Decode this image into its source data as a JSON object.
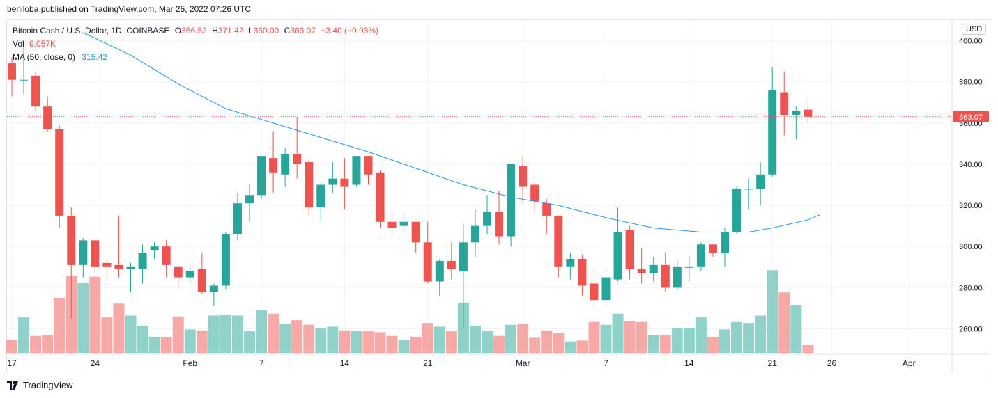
{
  "header": {
    "published_text": "beniloba published on TradingView.com, Mar 25, 2022 07:26 UTC"
  },
  "legend": {
    "symbol": "Bitcoin Cash / U.S. Dollar, 1D, COINBASE",
    "o_label": "O",
    "o_value": "366.52",
    "h_label": "H",
    "h_value": "371.42",
    "l_label": "L",
    "l_value": "360.00",
    "c_label": "C",
    "c_value": "363.07",
    "change": "−3.40 (−0.93%)",
    "vol_label": "Vol",
    "vol_value": "9.057K",
    "ma_label": "MA (50, close, 0)",
    "ma_value": "315.42"
  },
  "currency_button": "USD",
  "footer": {
    "brand": "TradingView"
  },
  "colors": {
    "up": "#26a69a",
    "down": "#ef5350",
    "up_vol": "#90d1ca",
    "down_vol": "#f7a9a7",
    "ma": "#2196f3"
  },
  "chart_data": {
    "type": "candlestick",
    "last_price_label": "363.07",
    "y_ticks": [
      "260.00",
      "280.00",
      "300.00",
      "320.00",
      "340.00",
      "360.00",
      "380.00",
      "400.00"
    ],
    "x_ticks": [
      "17",
      "24",
      "Feb",
      "7",
      "14",
      "21",
      "Mar",
      "7",
      "14",
      "21",
      "26",
      "Apr"
    ],
    "ylim": [
      248,
      410
    ],
    "candles": [
      {
        "date": "Jan 17",
        "o": 389,
        "h": 392,
        "l": 373,
        "c": 381,
        "v": 15
      },
      {
        "date": "Jan 18",
        "o": 381,
        "h": 400,
        "l": 374,
        "c": 381,
        "v": 39
      },
      {
        "date": "Jan 19",
        "o": 383,
        "h": 385,
        "l": 366,
        "c": 368,
        "v": 19
      },
      {
        "date": "Jan 20",
        "o": 368,
        "h": 373,
        "l": 356,
        "c": 357,
        "v": 20
      },
      {
        "date": "Jan 21",
        "o": 357,
        "h": 359,
        "l": 309,
        "c": 315,
        "v": 60
      },
      {
        "date": "Jan 22",
        "o": 315,
        "h": 319,
        "l": 265,
        "c": 291,
        "v": 84
      },
      {
        "date": "Jan 23",
        "o": 291,
        "h": 304,
        "l": 285,
        "c": 303,
        "v": 76
      },
      {
        "date": "Jan 24",
        "o": 303,
        "h": 303,
        "l": 287,
        "c": 290,
        "v": 83
      },
      {
        "date": "Jan 25",
        "o": 292,
        "h": 293,
        "l": 283,
        "c": 290,
        "v": 39
      },
      {
        "date": "Jan 26",
        "o": 291,
        "h": 315,
        "l": 285,
        "c": 289,
        "v": 54
      },
      {
        "date": "Jan 27",
        "o": 289,
        "h": 292,
        "l": 278,
        "c": 290,
        "v": 41
      },
      {
        "date": "Jan 28",
        "o": 289,
        "h": 301,
        "l": 282,
        "c": 297,
        "v": 30
      },
      {
        "date": "Jan 29",
        "o": 298,
        "h": 302,
        "l": 294,
        "c": 300,
        "v": 18
      },
      {
        "date": "Jan 30",
        "o": 300,
        "h": 303,
        "l": 285,
        "c": 291,
        "v": 18
      },
      {
        "date": "Jan 31",
        "o": 290,
        "h": 291,
        "l": 279,
        "c": 285,
        "v": 40
      },
      {
        "date": "Feb 1",
        "o": 285,
        "h": 291,
        "l": 282,
        "c": 288,
        "v": 26
      },
      {
        "date": "Feb 2",
        "o": 289,
        "h": 297,
        "l": 277,
        "c": 278,
        "v": 25
      },
      {
        "date": "Feb 3",
        "o": 278,
        "h": 282,
        "l": 271,
        "c": 281,
        "v": 41
      },
      {
        "date": "Feb 4",
        "o": 281,
        "h": 307,
        "l": 279,
        "c": 306,
        "v": 42
      },
      {
        "date": "Feb 5",
        "o": 306,
        "h": 326,
        "l": 303,
        "c": 321,
        "v": 41
      },
      {
        "date": "Feb 6",
        "o": 321,
        "h": 330,
        "l": 312,
        "c": 325,
        "v": 24
      },
      {
        "date": "Feb 7",
        "o": 325,
        "h": 344,
        "l": 323,
        "c": 344,
        "v": 47
      },
      {
        "date": "Feb 8",
        "o": 343,
        "h": 356,
        "l": 326,
        "c": 336,
        "v": 43
      },
      {
        "date": "Feb 9",
        "o": 335,
        "h": 348,
        "l": 329,
        "c": 345,
        "v": 32
      },
      {
        "date": "Feb 10",
        "o": 345,
        "h": 363,
        "l": 333,
        "c": 340,
        "v": 36
      },
      {
        "date": "Feb 11",
        "o": 341,
        "h": 342,
        "l": 315,
        "c": 319,
        "v": 31
      },
      {
        "date": "Feb 12",
        "o": 319,
        "h": 331,
        "l": 312,
        "c": 330,
        "v": 27
      },
      {
        "date": "Feb 13",
        "o": 330,
        "h": 341,
        "l": 326,
        "c": 333,
        "v": 29
      },
      {
        "date": "Feb 14",
        "o": 333,
        "h": 343,
        "l": 318,
        "c": 329,
        "v": 25
      },
      {
        "date": "Feb 15",
        "o": 330,
        "h": 344,
        "l": 329,
        "c": 344,
        "v": 24
      },
      {
        "date": "Feb 16",
        "o": 344,
        "h": 344,
        "l": 330,
        "c": 335,
        "v": 24
      },
      {
        "date": "Feb 17",
        "o": 336,
        "h": 337,
        "l": 309,
        "c": 312,
        "v": 23
      },
      {
        "date": "Feb 18",
        "o": 312,
        "h": 317,
        "l": 307,
        "c": 309,
        "v": 19
      },
      {
        "date": "Feb 19",
        "o": 310,
        "h": 316,
        "l": 307,
        "c": 312,
        "v": 15
      },
      {
        "date": "Feb 20",
        "o": 312,
        "h": 312,
        "l": 297,
        "c": 302,
        "v": 18
      },
      {
        "date": "Feb 21",
        "o": 302,
        "h": 312,
        "l": 282,
        "c": 283,
        "v": 33
      },
      {
        "date": "Feb 22",
        "o": 283,
        "h": 294,
        "l": 276,
        "c": 293,
        "v": 29
      },
      {
        "date": "Feb 23",
        "o": 293,
        "h": 302,
        "l": 284,
        "c": 289,
        "v": 24
      },
      {
        "date": "Feb 24",
        "o": 288,
        "h": 311,
        "l": 260,
        "c": 302,
        "v": 55
      },
      {
        "date": "Feb 25",
        "o": 302,
        "h": 318,
        "l": 295,
        "c": 310,
        "v": 30
      },
      {
        "date": "Feb 26",
        "o": 310,
        "h": 325,
        "l": 306,
        "c": 317,
        "v": 24
      },
      {
        "date": "Feb 27",
        "o": 317,
        "h": 327,
        "l": 301,
        "c": 305,
        "v": 19
      },
      {
        "date": "Feb 28",
        "o": 305,
        "h": 340,
        "l": 300,
        "c": 340,
        "v": 31
      },
      {
        "date": "Mar 1",
        "o": 339,
        "h": 344,
        "l": 322,
        "c": 329,
        "v": 32
      },
      {
        "date": "Mar 2",
        "o": 330,
        "h": 331,
        "l": 317,
        "c": 322,
        "v": 17
      },
      {
        "date": "Mar 3",
        "o": 321,
        "h": 323,
        "l": 306,
        "c": 315,
        "v": 25
      },
      {
        "date": "Mar 4",
        "o": 315,
        "h": 315,
        "l": 285,
        "c": 290,
        "v": 22
      },
      {
        "date": "Mar 5",
        "o": 290,
        "h": 297,
        "l": 284,
        "c": 294,
        "v": 13
      },
      {
        "date": "Mar 6",
        "o": 294,
        "h": 296,
        "l": 276,
        "c": 281,
        "v": 14
      },
      {
        "date": "Mar 7",
        "o": 282,
        "h": 289,
        "l": 270,
        "c": 274,
        "v": 34
      },
      {
        "date": "Mar 8",
        "o": 274,
        "h": 289,
        "l": 273,
        "c": 285,
        "v": 31
      },
      {
        "date": "Mar 9",
        "o": 284,
        "h": 319,
        "l": 283,
        "c": 307,
        "v": 43
      },
      {
        "date": "Mar 10",
        "o": 308,
        "h": 310,
        "l": 284,
        "c": 289,
        "v": 35
      },
      {
        "date": "Mar 11",
        "o": 289,
        "h": 299,
        "l": 282,
        "c": 287,
        "v": 34
      },
      {
        "date": "Mar 12",
        "o": 287,
        "h": 295,
        "l": 283,
        "c": 291,
        "v": 20
      },
      {
        "date": "Mar 13",
        "o": 291,
        "h": 297,
        "l": 278,
        "c": 280,
        "v": 20
      },
      {
        "date": "Mar 14",
        "o": 280,
        "h": 293,
        "l": 279,
        "c": 290,
        "v": 27
      },
      {
        "date": "Mar 15",
        "o": 290,
        "h": 295,
        "l": 283,
        "c": 290,
        "v": 27
      },
      {
        "date": "Mar 16",
        "o": 290,
        "h": 302,
        "l": 288,
        "c": 301,
        "v": 39
      },
      {
        "date": "Mar 17",
        "o": 301,
        "h": 301,
        "l": 295,
        "c": 297,
        "v": 18
      },
      {
        "date": "Mar 18",
        "o": 297,
        "h": 309,
        "l": 290,
        "c": 307,
        "v": 26
      },
      {
        "date": "Mar 19",
        "o": 307,
        "h": 329,
        "l": 306,
        "c": 328,
        "v": 34
      },
      {
        "date": "Mar 20",
        "o": 328,
        "h": 333,
        "l": 318,
        "c": 328,
        "v": 33
      },
      {
        "date": "Mar 21",
        "o": 328,
        "h": 341,
        "l": 320,
        "c": 335,
        "v": 41
      },
      {
        "date": "Mar 22",
        "o": 335,
        "h": 387,
        "l": 334,
        "c": 376,
        "v": 90
      },
      {
        "date": "Mar 23",
        "o": 375,
        "h": 385,
        "l": 354,
        "c": 364,
        "v": 66
      },
      {
        "date": "Mar 24",
        "o": 364,
        "h": 368,
        "l": 352,
        "c": 366,
        "v": 52
      },
      {
        "date": "Mar 25",
        "o": 366.52,
        "h": 371.42,
        "l": 360.0,
        "c": 363.07,
        "v": 9
      }
    ],
    "ma_series": {
      "name": "MA (50, close, 0)",
      "points": [
        {
          "i": 6,
          "v": 404
        },
        {
          "i": 10,
          "v": 393
        },
        {
          "i": 14,
          "v": 379
        },
        {
          "i": 18,
          "v": 367
        },
        {
          "i": 22,
          "v": 360
        },
        {
          "i": 26,
          "v": 353
        },
        {
          "i": 30,
          "v": 346
        },
        {
          "i": 34,
          "v": 338
        },
        {
          "i": 38,
          "v": 330
        },
        {
          "i": 42,
          "v": 324
        },
        {
          "i": 46,
          "v": 320
        },
        {
          "i": 50,
          "v": 314
        },
        {
          "i": 54,
          "v": 309
        },
        {
          "i": 58,
          "v": 307
        },
        {
          "i": 62,
          "v": 307
        },
        {
          "i": 64,
          "v": 309
        },
        {
          "i": 67,
          "v": 313
        },
        {
          "i": 68,
          "v": 315.42
        }
      ]
    }
  }
}
